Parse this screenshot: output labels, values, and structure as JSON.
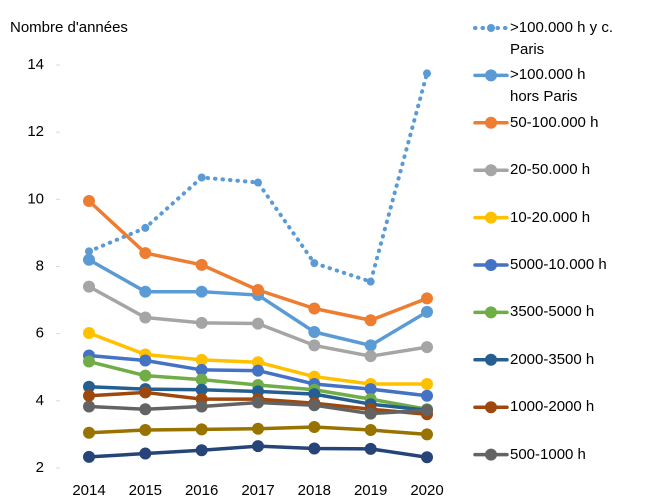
{
  "chart_data": {
    "type": "line",
    "y_label": "Nombre d'années",
    "categories": [
      "2014",
      "2015",
      "2016",
      "2017",
      "2018",
      "2019",
      "2020"
    ],
    "ylim": [
      2,
      14
    ],
    "yticks": [
      2,
      4,
      6,
      8,
      10,
      12,
      14
    ],
    "grid": false,
    "series": [
      {
        "name": ">100.000 h y c. Paris",
        "color": "#5b9bd5",
        "dotted": true,
        "values": [
          8.45,
          9.15,
          10.65,
          10.5,
          8.1,
          7.55,
          13.75
        ]
      },
      {
        "name": ">100.000 h hors Paris",
        "color": "#5b9bd5",
        "values": [
          8.2,
          7.25,
          7.25,
          7.15,
          6.05,
          5.65,
          6.65
        ]
      },
      {
        "name": "50-100.000 h",
        "color": "#ed7d31",
        "values": [
          9.95,
          8.4,
          8.05,
          7.3,
          6.75,
          6.4,
          7.05
        ]
      },
      {
        "name": "20-50.000 h",
        "color": "#a5a5a5",
        "values": [
          7.4,
          6.48,
          6.32,
          6.3,
          5.65,
          5.33,
          5.6
        ]
      },
      {
        "name": "10-20.000 h",
        "color": "#ffc000",
        "values": [
          6.02,
          5.38,
          5.22,
          5.15,
          4.72,
          4.5,
          4.5
        ]
      },
      {
        "name": "5000-10.000 h",
        "color": "#4472c4",
        "values": [
          5.35,
          5.2,
          4.92,
          4.9,
          4.5,
          4.35,
          4.15
        ]
      },
      {
        "name": "3500-5000 h",
        "color": "#70ad47",
        "values": [
          5.17,
          4.75,
          4.63,
          4.47,
          4.33,
          4.05,
          3.75
        ]
      },
      {
        "name": "2000-3500 h",
        "color": "#255e91",
        "values": [
          4.42,
          4.35,
          4.33,
          4.28,
          4.2,
          3.9,
          3.72
        ]
      },
      {
        "name": "1000-2000 h",
        "color": "#9e480e",
        "values": [
          4.15,
          4.25,
          4.05,
          4.05,
          3.93,
          3.75,
          3.6
        ]
      },
      {
        "name": "500-1000 h",
        "color": "#636363",
        "values": [
          3.83,
          3.75,
          3.83,
          3.95,
          3.87,
          3.62,
          3.72
        ]
      },
      {
        "color": "#997300",
        "values": [
          3.05,
          3.13,
          3.15,
          3.17,
          3.22,
          3.13,
          3.0
        ]
      },
      {
        "color": "#264478",
        "values": [
          2.33,
          2.43,
          2.53,
          2.65,
          2.58,
          2.57,
          2.32
        ]
      }
    ]
  }
}
